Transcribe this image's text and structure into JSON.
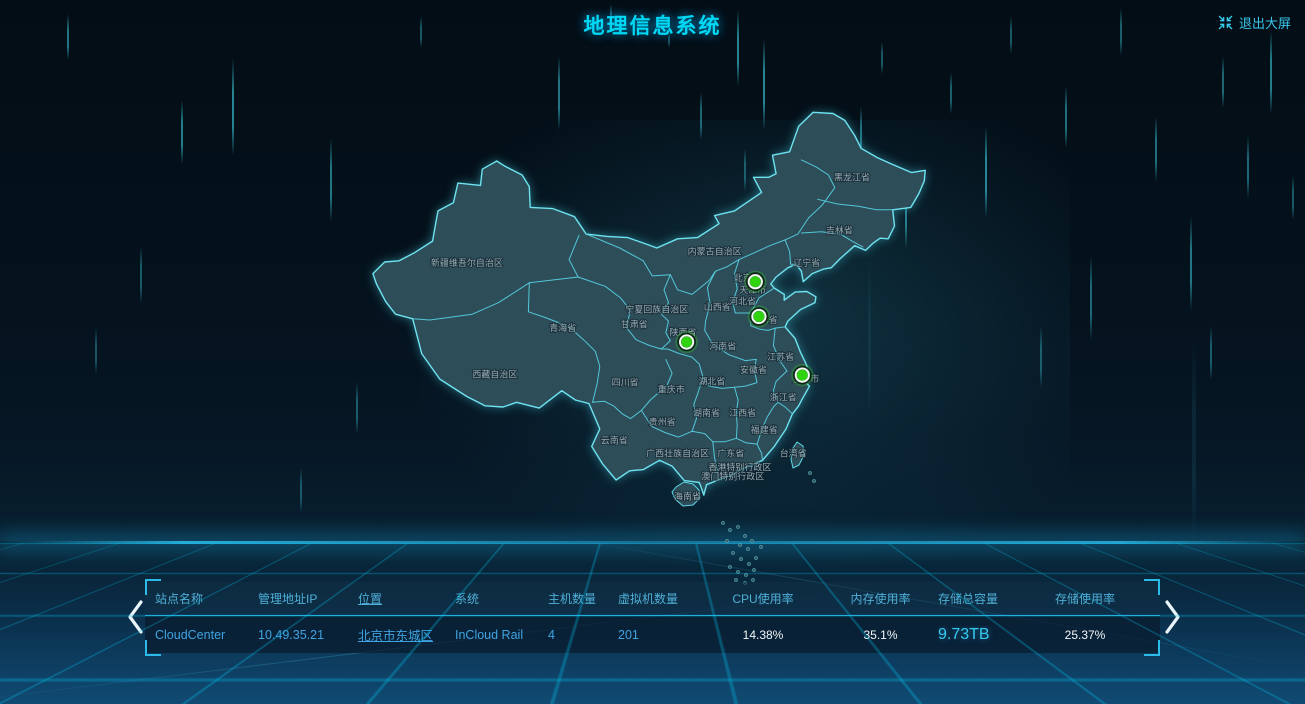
{
  "header": {
    "title": "地理信息系统",
    "exit_button": "退出大屏"
  },
  "icons": {
    "exit": "exit-fullscreen",
    "prev": "chevron-left",
    "next": "chevron-right"
  },
  "colors": {
    "accent": "#00d9f5",
    "table_link": "#3fa4e2",
    "marker_green": "#2fd30e",
    "border_cyan": "#58d5e6"
  },
  "map": {
    "provinces": [
      {
        "name": "新疆维吾尔自治区",
        "lon": 84.0,
        "lat": 40.3
      },
      {
        "name": "西藏自治区",
        "lon": 87.1,
        "lat": 30.7
      },
      {
        "name": "青海省",
        "lon": 94.6,
        "lat": 34.7
      },
      {
        "name": "甘肃省",
        "lon": 102.5,
        "lat": 35.0
      },
      {
        "name": "宁夏回族自治区",
        "lon": 105.0,
        "lat": 36.3
      },
      {
        "name": "内蒙古自治区",
        "lon": 111.4,
        "lat": 41.3
      },
      {
        "name": "陕西省",
        "lon": 107.9,
        "lat": 34.3
      },
      {
        "name": "山西省",
        "lon": 111.7,
        "lat": 36.5
      },
      {
        "name": "河北省",
        "lon": 114.5,
        "lat": 37.0
      },
      {
        "name": "北京市",
        "lon": 115.0,
        "lat": 39.0
      },
      {
        "name": "天津市",
        "lon": 115.6,
        "lat": 38.0
      },
      {
        "name": "山东省",
        "lon": 116.9,
        "lat": 35.4
      },
      {
        "name": "河南省",
        "lon": 112.3,
        "lat": 33.1
      },
      {
        "name": "江苏省",
        "lon": 118.7,
        "lat": 32.2
      },
      {
        "name": "安徽省",
        "lon": 115.7,
        "lat": 31.1
      },
      {
        "name": "湖北省",
        "lon": 111.1,
        "lat": 30.1
      },
      {
        "name": "上海市",
        "lon": 121.5,
        "lat": 30.3
      },
      {
        "name": "浙江省",
        "lon": 119.0,
        "lat": 28.7
      },
      {
        "name": "江西省",
        "lon": 114.5,
        "lat": 27.4
      },
      {
        "name": "湖南省",
        "lon": 110.5,
        "lat": 27.4
      },
      {
        "name": "重庆市",
        "lon": 106.6,
        "lat": 29.4
      },
      {
        "name": "四川省",
        "lon": 101.5,
        "lat": 30.0
      },
      {
        "name": "贵州省",
        "lon": 105.6,
        "lat": 26.6
      },
      {
        "name": "云南省",
        "lon": 100.3,
        "lat": 25.0
      },
      {
        "name": "福建省",
        "lon": 116.9,
        "lat": 25.9
      },
      {
        "name": "广西壮族自治区",
        "lon": 107.3,
        "lat": 23.9
      },
      {
        "name": "广东省",
        "lon": 113.2,
        "lat": 23.9
      },
      {
        "name": "台湾省",
        "lon": 120.1,
        "lat": 23.9
      },
      {
        "name": "香港特别行政区",
        "lon": 114.2,
        "lat": 22.7
      },
      {
        "name": "澳门特别行政区",
        "lon": 113.4,
        "lat": 21.9
      },
      {
        "name": "海南省",
        "lon": 108.4,
        "lat": 20.2
      },
      {
        "name": "黑龙江省",
        "lon": 126.6,
        "lat": 47.7
      },
      {
        "name": "吉林省",
        "lon": 125.2,
        "lat": 43.1
      },
      {
        "name": "辽宁省",
        "lon": 121.6,
        "lat": 40.3
      }
    ],
    "sites": [
      {
        "lon": 115.9,
        "lat": 38.7
      },
      {
        "lon": 116.3,
        "lat": 35.7
      },
      {
        "lon": 108.3,
        "lat": 33.5
      },
      {
        "lon": 121.1,
        "lat": 30.65
      }
    ]
  },
  "table": {
    "columns": [
      "站点名称",
      "管理地址IP",
      "位置",
      "系统",
      "主机数量",
      "虚拟机数量",
      "CPU使用率",
      "内存使用率",
      "存储总容量",
      "存储使用率"
    ],
    "rows": [
      [
        "CloudCenter",
        "10.49.35.21",
        "北京市东城区",
        "InCloud Rail",
        "4",
        "201",
        "14.38%",
        "35.1%",
        "9.73TB",
        "25.37%"
      ]
    ]
  }
}
